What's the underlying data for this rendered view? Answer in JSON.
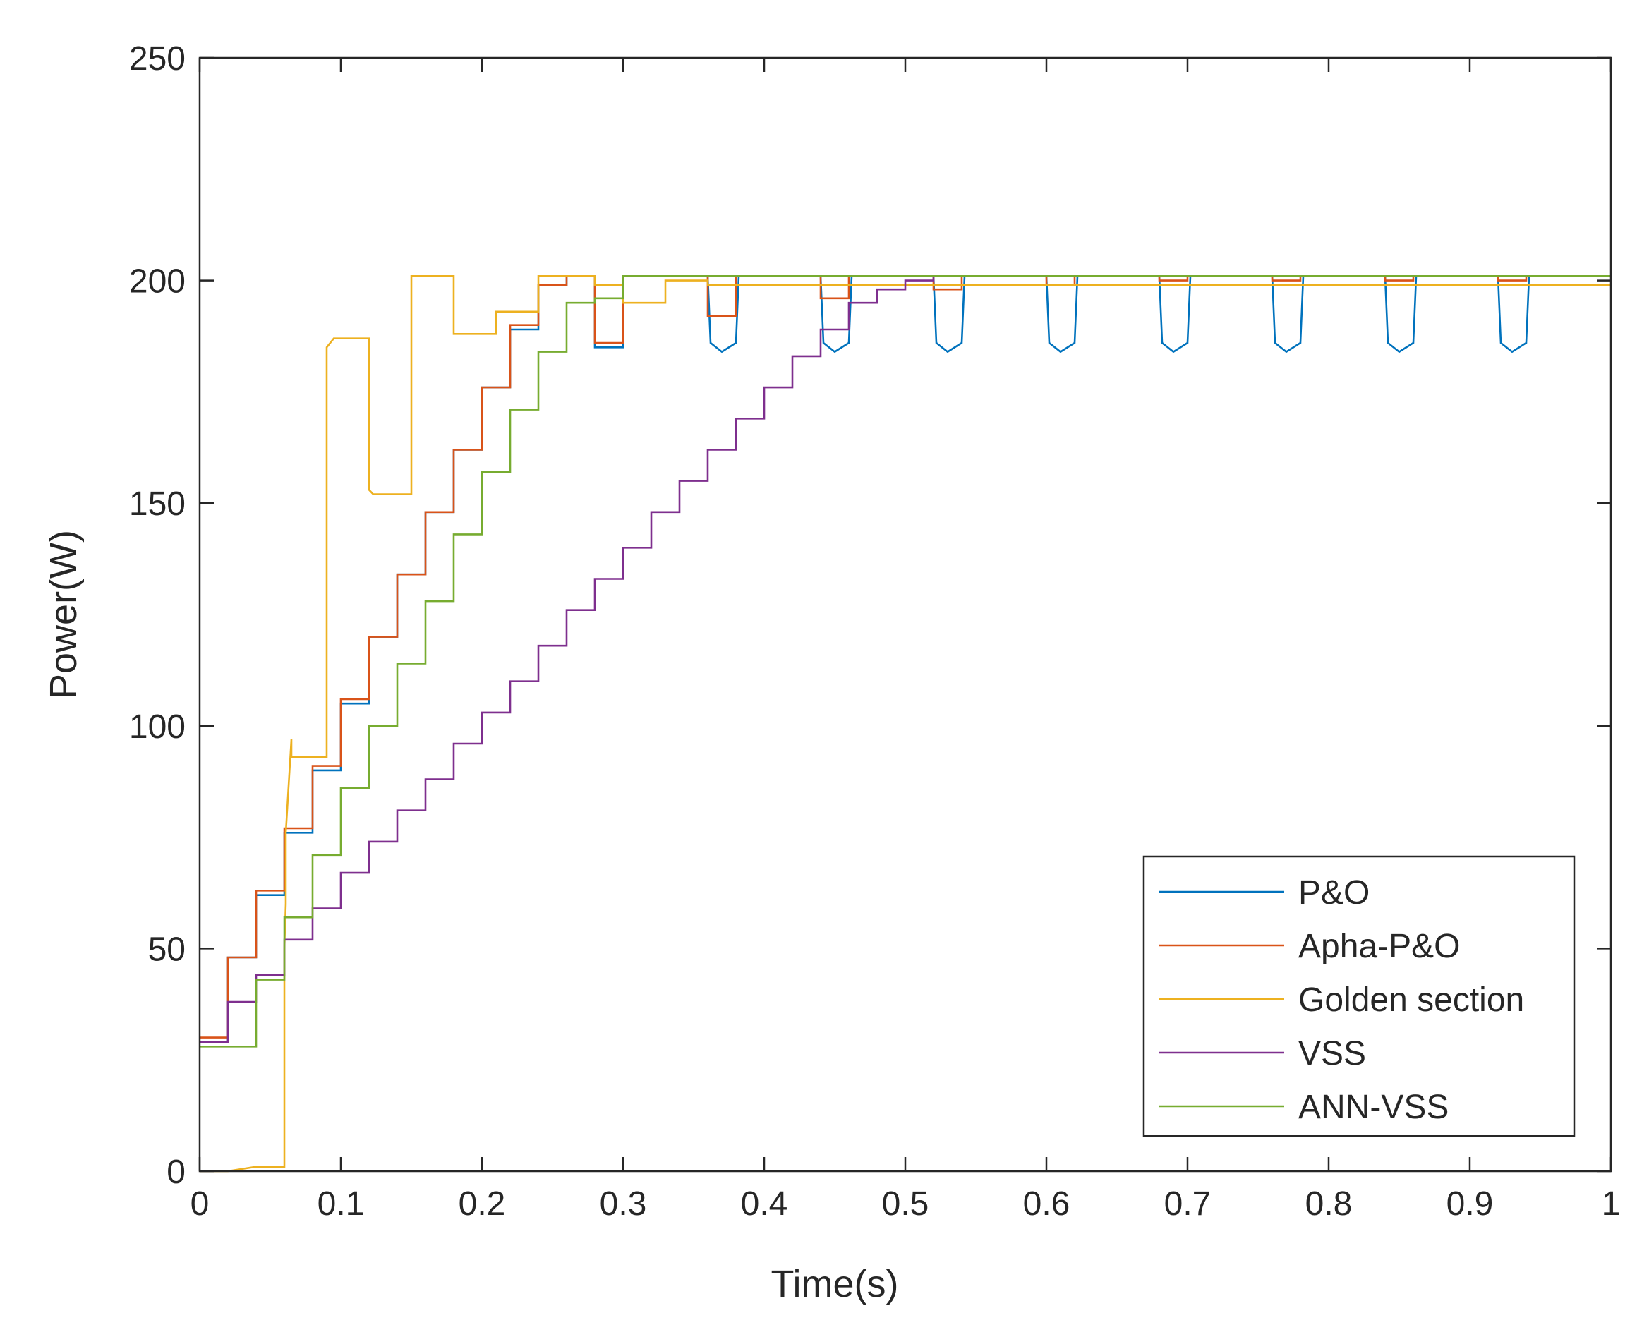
{
  "chart_data": {
    "type": "line",
    "title": "",
    "xlabel": "Time(s)",
    "ylabel": "Power(W)",
    "xlim": [
      0,
      1
    ],
    "ylim": [
      0,
      250
    ],
    "xticks": [
      0,
      0.1,
      0.2,
      0.3,
      0.4,
      0.5,
      0.6,
      0.7,
      0.8,
      0.9,
      1
    ],
    "xtick_labels": [
      "0",
      "0.1",
      "0.2",
      "0.3",
      "0.4",
      "0.5",
      "0.6",
      "0.7",
      "0.8",
      "0.9",
      "1"
    ],
    "yticks": [
      0,
      50,
      100,
      150,
      200,
      250
    ],
    "ytick_labels": [
      "0",
      "50",
      "100",
      "150",
      "200",
      "250"
    ],
    "grid": false,
    "legend_position": "bottom-right",
    "series": [
      {
        "name": "P&O",
        "color": "#0072BD",
        "x": [
          0,
          0.02,
          0.02,
          0.04,
          0.04,
          0.06,
          0.06,
          0.08,
          0.08,
          0.1,
          0.1,
          0.12,
          0.12,
          0.14,
          0.14,
          0.16,
          0.16,
          0.18,
          0.18,
          0.2,
          0.2,
          0.22,
          0.22,
          0.24,
          0.24,
          0.26,
          0.26,
          0.28,
          0.28,
          0.3,
          0.3,
          0.36,
          0.362,
          0.37,
          0.38,
          0.382,
          0.44,
          0.442,
          0.45,
          0.46,
          0.462,
          0.52,
          0.522,
          0.53,
          0.54,
          0.542,
          0.6,
          0.602,
          0.61,
          0.62,
          0.622,
          0.68,
          0.682,
          0.69,
          0.7,
          0.702,
          0.76,
          0.762,
          0.77,
          0.78,
          0.782,
          0.84,
          0.842,
          0.85,
          0.86,
          0.862,
          0.92,
          0.922,
          0.93,
          0.94,
          0.942,
          1
        ],
        "values": [
          29,
          29,
          48,
          48,
          62,
          62,
          76,
          76,
          90,
          90,
          105,
          105,
          120,
          120,
          134,
          134,
          148,
          148,
          162,
          162,
          176,
          176,
          189,
          189,
          199,
          199,
          201,
          201,
          185,
          185,
          201,
          201,
          186,
          184,
          186,
          201,
          201,
          186,
          184,
          186,
          201,
          201,
          186,
          184,
          186,
          201,
          201,
          186,
          184,
          186,
          201,
          201,
          186,
          184,
          186,
          201,
          201,
          186,
          184,
          186,
          201,
          201,
          186,
          184,
          186,
          201,
          201,
          186,
          184,
          186,
          201,
          201
        ]
      },
      {
        "name": "Apha-P&O",
        "color": "#D95319",
        "x": [
          0,
          0.02,
          0.02,
          0.04,
          0.04,
          0.06,
          0.06,
          0.08,
          0.08,
          0.1,
          0.1,
          0.12,
          0.12,
          0.14,
          0.14,
          0.16,
          0.16,
          0.18,
          0.18,
          0.2,
          0.2,
          0.22,
          0.22,
          0.24,
          0.24,
          0.26,
          0.26,
          0.28,
          0.28,
          0.3,
          0.3,
          0.36,
          0.36,
          0.38,
          0.38,
          0.44,
          0.44,
          0.46,
          0.46,
          0.52,
          0.52,
          0.54,
          0.54,
          0.6,
          0.6,
          0.62,
          0.62,
          0.68,
          0.68,
          0.7,
          0.7,
          0.76,
          0.76,
          0.78,
          0.78,
          0.84,
          0.84,
          0.86,
          0.86,
          0.92,
          0.92,
          0.94,
          0.94,
          1
        ],
        "values": [
          30,
          30,
          48,
          48,
          63,
          63,
          77,
          77,
          91,
          91,
          106,
          106,
          120,
          120,
          134,
          134,
          148,
          148,
          162,
          162,
          176,
          176,
          190,
          190,
          199,
          199,
          201,
          201,
          186,
          186,
          201,
          201,
          192,
          192,
          201,
          201,
          196,
          196,
          201,
          201,
          198,
          198,
          201,
          201,
          199,
          199,
          201,
          201,
          200,
          200,
          201,
          201,
          200,
          200,
          201,
          201,
          200,
          200,
          201,
          201,
          200,
          200,
          201,
          201
        ]
      },
      {
        "name": "Golden section",
        "color": "#EDB120",
        "x": [
          0,
          0.02,
          0.04,
          0.06,
          0.06,
          0.061,
          0.061,
          0.065,
          0.065,
          0.09,
          0.09,
          0.095,
          0.095,
          0.12,
          0.12,
          0.123,
          0.123,
          0.15,
          0.15,
          0.18,
          0.18,
          0.21,
          0.21,
          0.24,
          0.24,
          0.26,
          0.26,
          0.28,
          0.28,
          0.3,
          0.3,
          0.33,
          0.33,
          0.36,
          0.36,
          1
        ],
        "values": [
          0,
          0,
          1,
          1,
          50,
          60,
          76,
          97,
          93,
          93,
          185,
          187,
          187,
          187,
          153,
          152,
          152,
          152,
          201,
          201,
          188,
          188,
          193,
          193,
          201,
          201,
          201,
          201,
          199,
          199,
          195,
          195,
          200,
          200,
          199,
          199
        ]
      },
      {
        "name": "VSS",
        "color": "#7E2F8E",
        "x": [
          0,
          0.02,
          0.02,
          0.04,
          0.04,
          0.06,
          0.06,
          0.08,
          0.08,
          0.1,
          0.1,
          0.12,
          0.12,
          0.14,
          0.14,
          0.16,
          0.16,
          0.18,
          0.18,
          0.2,
          0.2,
          0.22,
          0.22,
          0.24,
          0.24,
          0.26,
          0.26,
          0.28,
          0.28,
          0.3,
          0.3,
          0.32,
          0.32,
          0.34,
          0.34,
          0.36,
          0.36,
          0.38,
          0.38,
          0.4,
          0.4,
          0.42,
          0.42,
          0.44,
          0.44,
          0.46,
          0.46,
          0.48,
          0.48,
          0.5,
          0.5,
          0.52,
          0.52,
          1
        ],
        "values": [
          29,
          29,
          38,
          38,
          44,
          44,
          52,
          52,
          59,
          59,
          67,
          67,
          74,
          74,
          81,
          81,
          88,
          88,
          96,
          96,
          103,
          103,
          110,
          110,
          118,
          118,
          126,
          126,
          133,
          133,
          140,
          140,
          148,
          148,
          155,
          155,
          162,
          162,
          169,
          169,
          176,
          176,
          183,
          183,
          189,
          189,
          195,
          195,
          198,
          198,
          200,
          200,
          201,
          201
        ]
      },
      {
        "name": "ANN-VSS",
        "color": "#77AC30",
        "x": [
          0,
          0.04,
          0.04,
          0.06,
          0.06,
          0.08,
          0.08,
          0.1,
          0.1,
          0.12,
          0.12,
          0.14,
          0.14,
          0.16,
          0.16,
          0.18,
          0.18,
          0.2,
          0.2,
          0.22,
          0.22,
          0.24,
          0.24,
          0.26,
          0.26,
          0.28,
          0.28,
          0.3,
          0.3,
          1
        ],
        "values": [
          28,
          28,
          43,
          43,
          57,
          57,
          71,
          71,
          86,
          86,
          100,
          100,
          114,
          114,
          128,
          128,
          143,
          143,
          157,
          157,
          171,
          171,
          184,
          184,
          195,
          195,
          196,
          196,
          201,
          201
        ]
      }
    ]
  }
}
